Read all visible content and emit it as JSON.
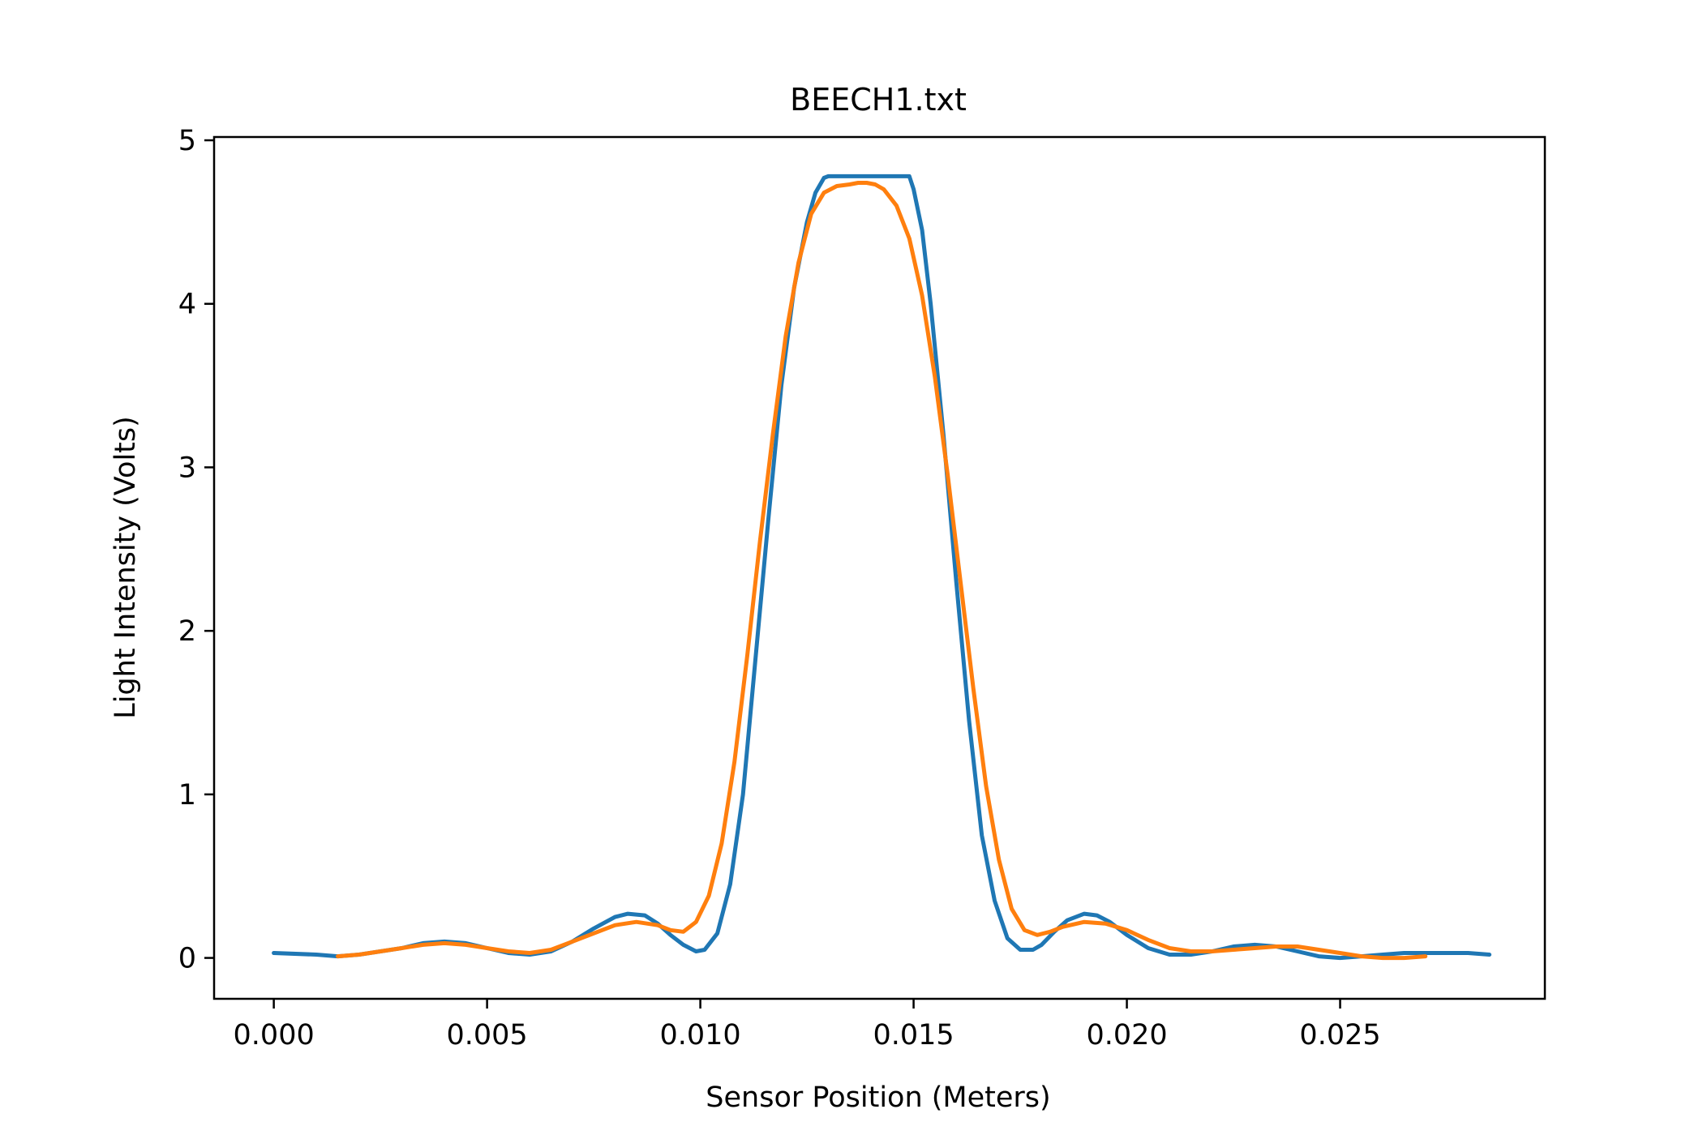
{
  "chart_data": {
    "type": "line",
    "title": "BEECH1.txt",
    "xlabel": "Sensor Position (Meters)",
    "ylabel": "Light Intensity (Volts)",
    "xlim": [
      -0.0014,
      0.0298
    ],
    "ylim": [
      -0.25,
      5.02
    ],
    "x_ticks": [
      0.0,
      0.005,
      0.01,
      0.015,
      0.02,
      0.025
    ],
    "x_tick_labels": [
      "0.000",
      "0.005",
      "0.010",
      "0.015",
      "0.020",
      "0.025"
    ],
    "y_ticks": [
      0,
      1,
      2,
      3,
      4,
      5
    ],
    "y_tick_labels": [
      "0",
      "1",
      "2",
      "3",
      "4",
      "5"
    ],
    "grid": false,
    "series": [
      {
        "color": "#1f77b4",
        "x": [
          0.0,
          0.001,
          0.0015,
          0.002,
          0.003,
          0.0035,
          0.004,
          0.0045,
          0.005,
          0.0055,
          0.006,
          0.0065,
          0.007,
          0.0075,
          0.008,
          0.0083,
          0.0087,
          0.009,
          0.0093,
          0.0096,
          0.0099,
          0.0101,
          0.0104,
          0.0107,
          0.011,
          0.0113,
          0.0116,
          0.0119,
          0.0122,
          0.0125,
          0.0127,
          0.0129,
          0.013,
          0.014,
          0.0149,
          0.015,
          0.0152,
          0.0154,
          0.0157,
          0.016,
          0.0163,
          0.0166,
          0.0169,
          0.0172,
          0.0175,
          0.0178,
          0.018,
          0.0183,
          0.0186,
          0.019,
          0.0193,
          0.0196,
          0.02,
          0.0205,
          0.021,
          0.0215,
          0.022,
          0.0225,
          0.023,
          0.0235,
          0.024,
          0.0245,
          0.025,
          0.0255,
          0.026,
          0.0265,
          0.027,
          0.0275,
          0.028,
          0.0285
        ],
        "y": [
          0.03,
          0.02,
          0.01,
          0.02,
          0.06,
          0.09,
          0.1,
          0.09,
          0.06,
          0.03,
          0.02,
          0.04,
          0.1,
          0.18,
          0.25,
          0.27,
          0.26,
          0.21,
          0.14,
          0.08,
          0.04,
          0.05,
          0.15,
          0.45,
          1.0,
          1.85,
          2.7,
          3.5,
          4.1,
          4.5,
          4.68,
          4.77,
          4.78,
          4.78,
          4.78,
          4.7,
          4.45,
          4.0,
          3.2,
          2.3,
          1.45,
          0.75,
          0.35,
          0.12,
          0.05,
          0.05,
          0.08,
          0.16,
          0.23,
          0.27,
          0.26,
          0.22,
          0.14,
          0.06,
          0.02,
          0.02,
          0.04,
          0.07,
          0.08,
          0.07,
          0.04,
          0.01,
          0.0,
          0.01,
          0.02,
          0.03,
          0.03,
          0.03,
          0.03,
          0.02
        ]
      },
      {
        "color": "#ff7f0e",
        "x": [
          0.0015,
          0.002,
          0.0025,
          0.003,
          0.0035,
          0.004,
          0.0045,
          0.005,
          0.0055,
          0.006,
          0.0065,
          0.007,
          0.0075,
          0.008,
          0.0085,
          0.009,
          0.0093,
          0.0096,
          0.0099,
          0.0102,
          0.0105,
          0.0108,
          0.0111,
          0.0114,
          0.0117,
          0.012,
          0.0123,
          0.0126,
          0.0129,
          0.0132,
          0.0135,
          0.0137,
          0.0139,
          0.0141,
          0.0143,
          0.0146,
          0.0149,
          0.0152,
          0.0155,
          0.0158,
          0.0161,
          0.0164,
          0.0167,
          0.017,
          0.0173,
          0.0176,
          0.0179,
          0.0182,
          0.0185,
          0.019,
          0.0195,
          0.02,
          0.0205,
          0.021,
          0.0215,
          0.022,
          0.0225,
          0.023,
          0.0235,
          0.024,
          0.0245,
          0.025,
          0.0255,
          0.026,
          0.0265,
          0.027
        ],
        "y": [
          0.01,
          0.02,
          0.04,
          0.06,
          0.08,
          0.09,
          0.08,
          0.06,
          0.04,
          0.03,
          0.05,
          0.1,
          0.15,
          0.2,
          0.22,
          0.2,
          0.17,
          0.16,
          0.22,
          0.38,
          0.7,
          1.2,
          1.85,
          2.55,
          3.2,
          3.8,
          4.25,
          4.55,
          4.68,
          4.72,
          4.73,
          4.74,
          4.74,
          4.73,
          4.7,
          4.6,
          4.4,
          4.05,
          3.55,
          2.95,
          2.3,
          1.65,
          1.05,
          0.6,
          0.3,
          0.17,
          0.14,
          0.16,
          0.19,
          0.22,
          0.21,
          0.17,
          0.11,
          0.06,
          0.04,
          0.04,
          0.05,
          0.06,
          0.07,
          0.07,
          0.05,
          0.03,
          0.01,
          0.0,
          0.0,
          0.01
        ]
      }
    ]
  }
}
